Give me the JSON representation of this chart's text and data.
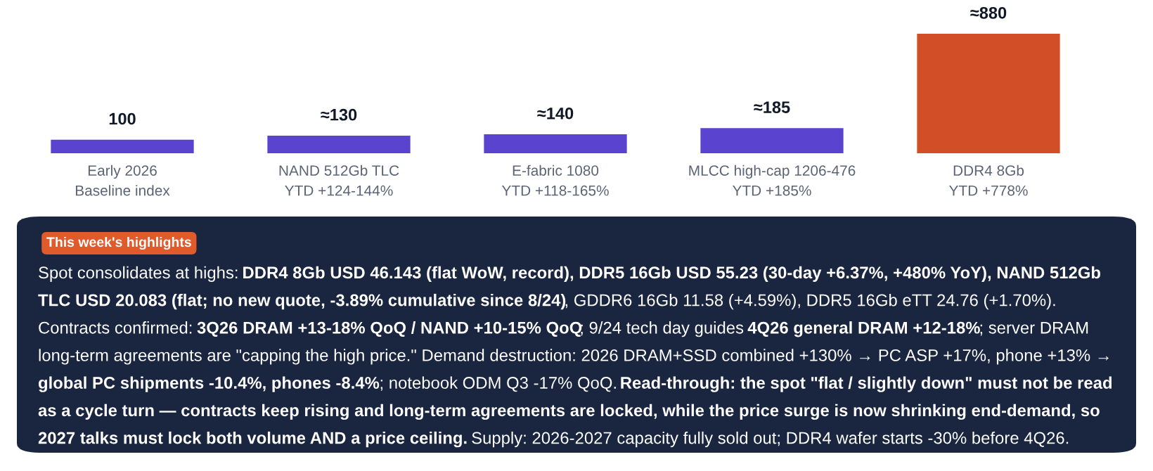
{
  "chart_data": {
    "type": "bar",
    "categories": [
      "Early 2026\nBaseline index",
      "NAND 512Gb TLC\nYTD +124-144%",
      "E-fabric 1080\nYTD +118-165%",
      "MLCC high-cap 1206-476\nYTD +185%",
      "DDR4 8Gb\nYTD +778%"
    ],
    "values": [
      100,
      130,
      140,
      185,
      880
    ],
    "value_labels": [
      "100",
      "≈130",
      "≈140",
      "≈185",
      "≈880"
    ],
    "colors": [
      "#5a44cf",
      "#5a44cf",
      "#5a44cf",
      "#5a44cf",
      "#d24e26"
    ],
    "grid": false,
    "legend": false,
    "annotations": [
      "This week's highlights",
      "Spot consolidates at highs: ",
      "DDR4 8Gb USD 46.143 (flat WoW, record), DDR5 16Gb USD 55.23 (30-day +6.37%, +480% YoY), NAND 512Gb TLC USD 20.083 (flat; no new quote, -3.89% cumulative since 8/24)",
      ", GDDR6 16Gb 11.58 (+4.59%), DDR5 16Gb eTT 24.76 (+1.70%). Contracts confirmed: ",
      "3Q26 DRAM +13-18% QoQ / NAND +10-15% QoQ",
      "; 9/24 tech day guides ",
      "4Q26 general DRAM +12-18%",
      "; server DRAM long-term agreements are \"capping the high price.\" Demand destruction: 2026 DRAM+SSD combined +130% → PC ASP +17%, phone +13% → ",
      "global PC shipments -10.4%, phones -8.4%",
      "; notebook ODM Q3 -17% QoQ. ",
      "Read-through: the spot \"flat / slightly down\" must not be read as a cycle turn — contracts keep rising and long-term agreements are locked, while the price surge is now shrinking end-demand, so 2027 talks must lock both volume AND a price ceiling.",
      " Supply: 2026-2027 capacity fully sold out; DDR4 wafer starts -30% before 4Q26."
    ]
  }
}
